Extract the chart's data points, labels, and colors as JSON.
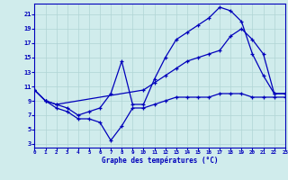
{
  "xlabel": "Graphe des températures (°C)",
  "bg_color": "#d0ecec",
  "line_color": "#0000bb",
  "grid_color": "#b0d4d4",
  "x_ticks": [
    0,
    1,
    2,
    3,
    4,
    5,
    6,
    7,
    8,
    9,
    10,
    11,
    12,
    13,
    14,
    15,
    16,
    17,
    18,
    19,
    20,
    21,
    22,
    23
  ],
  "y_ticks": [
    3,
    5,
    7,
    9,
    11,
    13,
    15,
    17,
    19,
    21
  ],
  "xlim": [
    0,
    23
  ],
  "ylim": [
    2.5,
    22.5
  ],
  "series_top": [
    [
      0,
      10.5
    ],
    [
      1,
      9.0
    ],
    [
      2,
      8.5
    ],
    [
      3,
      8.0
    ],
    [
      4,
      7.0
    ],
    [
      5,
      7.5
    ],
    [
      6,
      8.0
    ],
    [
      7,
      10.0
    ],
    [
      8,
      14.5
    ],
    [
      9,
      8.5
    ],
    [
      10,
      8.5
    ],
    [
      11,
      12.0
    ],
    [
      12,
      15.0
    ],
    [
      13,
      17.5
    ],
    [
      14,
      18.5
    ],
    [
      15,
      19.5
    ],
    [
      16,
      20.5
    ],
    [
      17,
      22.0
    ],
    [
      18,
      21.5
    ],
    [
      19,
      20.0
    ],
    [
      20,
      15.5
    ],
    [
      21,
      12.5
    ],
    [
      22,
      10.0
    ],
    [
      23,
      10.0
    ]
  ],
  "series_mid": [
    [
      0,
      10.5
    ],
    [
      1,
      9.0
    ],
    [
      2,
      8.5
    ],
    [
      10,
      10.5
    ],
    [
      11,
      11.5
    ],
    [
      12,
      12.5
    ],
    [
      13,
      13.5
    ],
    [
      14,
      14.5
    ],
    [
      15,
      15.0
    ],
    [
      16,
      15.5
    ],
    [
      17,
      16.0
    ],
    [
      18,
      18.0
    ],
    [
      19,
      19.0
    ],
    [
      20,
      17.5
    ],
    [
      21,
      15.5
    ],
    [
      22,
      10.0
    ],
    [
      23,
      10.0
    ]
  ],
  "series_bot": [
    [
      0,
      10.5
    ],
    [
      1,
      9.0
    ],
    [
      2,
      8.0
    ],
    [
      3,
      7.5
    ],
    [
      4,
      6.5
    ],
    [
      5,
      6.5
    ],
    [
      6,
      6.0
    ],
    [
      7,
      3.5
    ],
    [
      8,
      5.5
    ],
    [
      9,
      8.0
    ],
    [
      10,
      8.0
    ],
    [
      11,
      8.5
    ],
    [
      12,
      9.0
    ],
    [
      13,
      9.5
    ],
    [
      14,
      9.5
    ],
    [
      15,
      9.5
    ],
    [
      16,
      9.5
    ],
    [
      17,
      10.0
    ],
    [
      18,
      10.0
    ],
    [
      19,
      10.0
    ],
    [
      20,
      9.5
    ],
    [
      21,
      9.5
    ],
    [
      22,
      9.5
    ],
    [
      23,
      9.5
    ]
  ]
}
